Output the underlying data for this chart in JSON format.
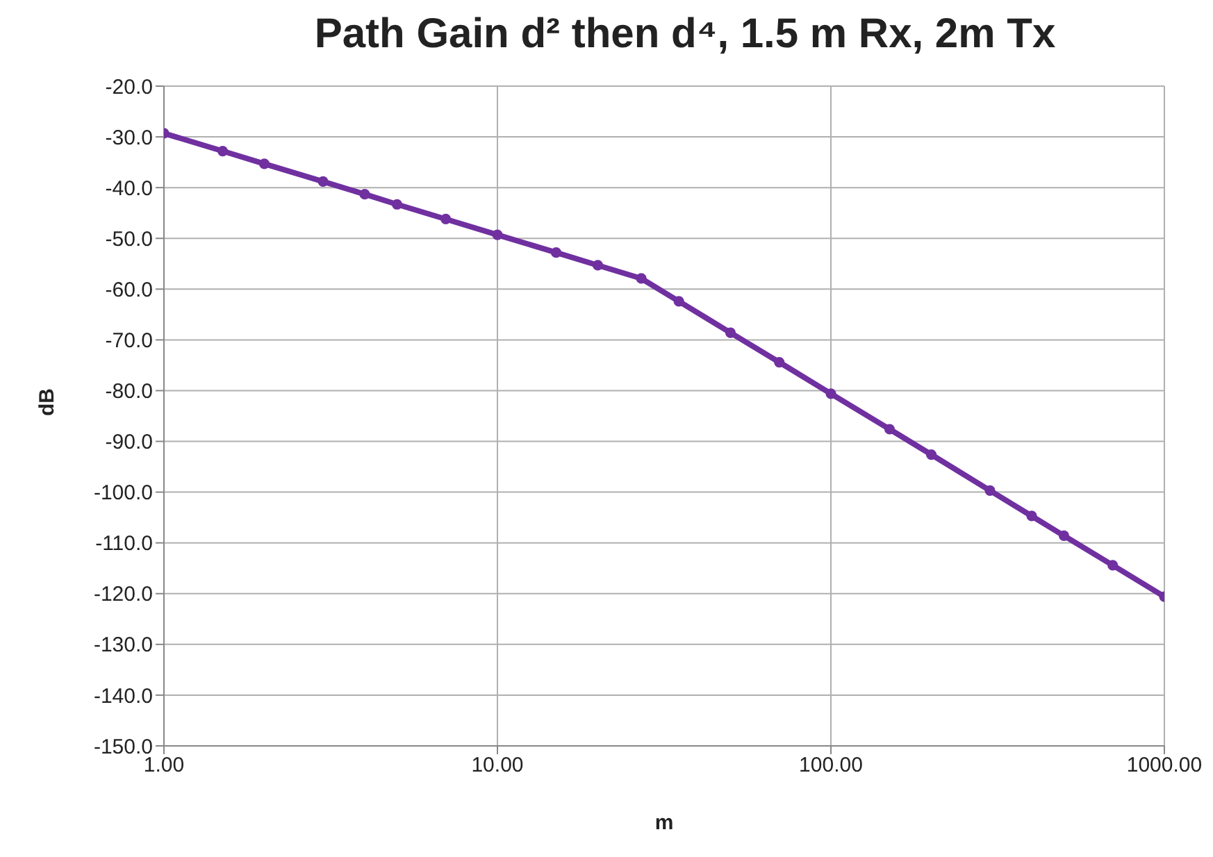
{
  "chart_data": {
    "type": "line",
    "title": "Path Gain d² then d⁴, 1.5 m Rx, 2m Tx",
    "xlabel": "m",
    "ylabel": "dB",
    "log": "x",
    "x": [
      1,
      1.5,
      2,
      3,
      4,
      5,
      7,
      10,
      15,
      20,
      27,
      35,
      50,
      70,
      100,
      150,
      200,
      300,
      400,
      500,
      700,
      1000
    ],
    "series": [
      {
        "color": "#7030a0",
        "values": [
          -29.3,
          -32.8,
          -35.3,
          -38.8,
          -41.3,
          -43.3,
          -46.2,
          -49.3,
          -52.8,
          -55.3,
          -57.9,
          -62.4,
          -68.6,
          -74.4,
          -80.6,
          -87.6,
          -92.6,
          -99.7,
          -104.7,
          -108.6,
          -114.4,
          -120.6
        ]
      }
    ],
    "xlim": [
      1,
      1000
    ],
    "xticks": [
      {
        "value": 1,
        "label": "1.00"
      },
      {
        "value": 10,
        "label": "10.00"
      },
      {
        "value": 100,
        "label": "100.00"
      },
      {
        "value": 1000,
        "label": "1000.00"
      }
    ],
    "ylim": [
      -150,
      -20
    ],
    "yticks": [
      {
        "value": -150,
        "label": "-150.0"
      },
      {
        "value": -140,
        "label": "-140.0"
      },
      {
        "value": -130,
        "label": "-130.0"
      },
      {
        "value": -120,
        "label": "-120.0"
      },
      {
        "value": -110,
        "label": "-110.0"
      },
      {
        "value": -100,
        "label": "-100.0"
      },
      {
        "value": -90,
        "label": "-90.0"
      },
      {
        "value": -80,
        "label": "-80.0"
      },
      {
        "value": -70,
        "label": "-70.0"
      },
      {
        "value": -60,
        "label": "-60.0"
      },
      {
        "value": -50,
        "label": "-50.0"
      },
      {
        "value": -40,
        "label": "-40.0"
      },
      {
        "value": -30,
        "label": "-30.0"
      },
      {
        "value": -20,
        "label": "-20.0"
      }
    ],
    "grid": true,
    "marker": "circle",
    "legend": false
  }
}
